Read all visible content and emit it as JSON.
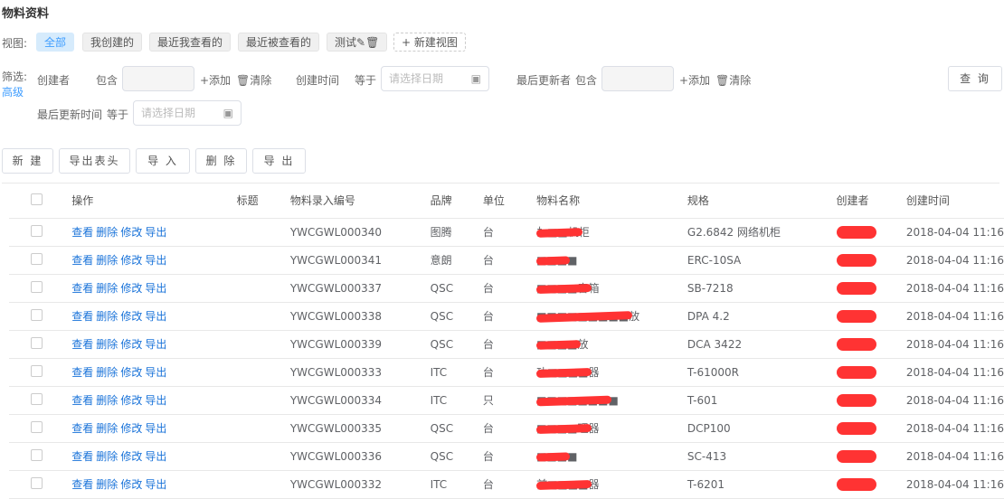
{
  "title": "物料资料",
  "views": {
    "label": "视图:",
    "items": [
      "全部",
      "我创建的",
      "最近我查看的",
      "最近被查看的",
      "测试"
    ],
    "new": "+ 新建视图"
  },
  "filter": {
    "label": "筛选:",
    "advanced": "高级",
    "creator": "创建者",
    "contains": "包含",
    "add": "+添加",
    "clear": "清除",
    "created_time": "创建时间",
    "equals": "等于",
    "date_placeholder": "请选择日期",
    "updater": "最后更新者",
    "updated_time": "最后更新时间",
    "query": "查 询"
  },
  "toolbar": [
    "新 建",
    "导出表头",
    "导 入",
    "删 除",
    "导 出"
  ],
  "table": {
    "headers": [
      "操作",
      "标题",
      "物料录入编号",
      "品牌",
      "单位",
      "物料名称",
      "规格",
      "创建者",
      "创建时间"
    ],
    "actions": [
      "查看",
      "删除",
      "修改",
      "导出"
    ],
    "rows": [
      {
        "code": "YWCGWL000340",
        "brand": "图腾",
        "unit": "台",
        "name": "扌■■机柜",
        "spec": "G2.6842 网络机柜",
        "time": "2018-04-04 11:16"
      },
      {
        "code": "YWCGWL000341",
        "brand": "意朗",
        "unit": "台",
        "name": "■■■■",
        "spec": "ERC-10SA",
        "time": "2018-04-04 11:16"
      },
      {
        "code": "YWCGWL000337",
        "brand": "QSC",
        "unit": "台",
        "name": "■■■■音箱",
        "spec": "SB-7218",
        "time": "2018-04-04 11:16"
      },
      {
        "code": "YWCGWL000338",
        "brand": "QSC",
        "unit": "台",
        "name": "■■■■■■■■■放",
        "spec": "DPA 4.2",
        "time": "2018-04-04 11:16"
      },
      {
        "code": "YWCGWL000339",
        "brand": "QSC",
        "unit": "台",
        "name": "■■■■放",
        "spec": "DCA 3422",
        "time": "2018-04-04 11:16"
      },
      {
        "code": "YWCGWL000333",
        "brand": "ITC",
        "unit": "台",
        "name": "功■■■■器",
        "spec": "T-61000R",
        "time": "2018-04-04 11:16"
      },
      {
        "code": "YWCGWL000334",
        "brand": "ITC",
        "unit": "只",
        "name": "■■■■■■■■",
        "spec": "T-601",
        "time": "2018-04-04 11:16"
      },
      {
        "code": "YWCGWL000335",
        "brand": "QSC",
        "unit": "台",
        "name": "■■■■理器",
        "spec": "DCP100",
        "time": "2018-04-04 11:16"
      },
      {
        "code": "YWCGWL000336",
        "brand": "QSC",
        "unit": "台",
        "name": "■■■■",
        "spec": "SC-413",
        "time": "2018-04-04 11:16"
      },
      {
        "code": "YWCGWL000332",
        "brand": "ITC",
        "unit": "台",
        "name": "前■■■■器",
        "spec": "T-6201",
        "time": "2018-04-04 11:16"
      }
    ]
  }
}
